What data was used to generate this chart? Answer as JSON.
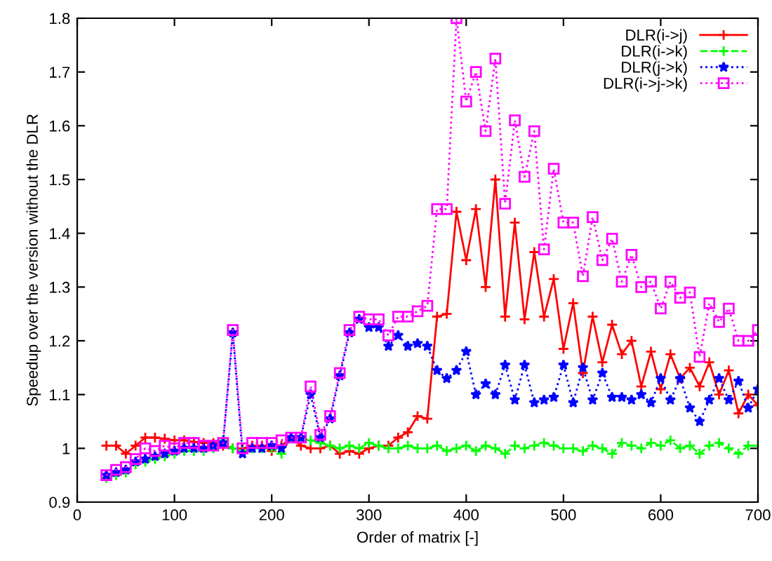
{
  "chart_data": {
    "type": "line",
    "xlabel": "Order of matrix [-]",
    "ylabel": "Speedup over the version without the DLR",
    "x": [
      30,
      40,
      50,
      60,
      70,
      80,
      90,
      100,
      110,
      120,
      130,
      140,
      150,
      160,
      170,
      180,
      190,
      200,
      210,
      220,
      230,
      240,
      250,
      260,
      270,
      280,
      290,
      300,
      310,
      320,
      330,
      340,
      350,
      360,
      370,
      380,
      390,
      400,
      410,
      420,
      430,
      440,
      450,
      460,
      470,
      480,
      490,
      500,
      510,
      520,
      530,
      540,
      550,
      560,
      570,
      580,
      590,
      600,
      610,
      620,
      630,
      640,
      650,
      660,
      670,
      680,
      690,
      700
    ],
    "series": [
      {
        "name": "DLR(i->j)",
        "color": "#ff0000",
        "line_style": "solid",
        "marker": "cross",
        "values": [
          1.005,
          1.005,
          0.99,
          1.005,
          1.02,
          1.02,
          1.018,
          1.015,
          1.015,
          1.012,
          1.01,
          1.01,
          1.005,
          1.0,
          1.0,
          1.005,
          1.005,
          0.995,
          1.005,
          1.02,
          1.005,
          1.0,
          1.0,
          1.005,
          0.99,
          0.995,
          0.99,
          1.0,
          1.005,
          1.005,
          1.02,
          1.03,
          1.06,
          1.055,
          1.245,
          1.25,
          1.44,
          1.35,
          1.445,
          1.3,
          1.5,
          1.245,
          1.42,
          1.24,
          1.365,
          1.245,
          1.315,
          1.185,
          1.27,
          1.14,
          1.245,
          1.16,
          1.23,
          1.175,
          1.2,
          1.115,
          1.18,
          1.11,
          1.175,
          1.13,
          1.15,
          1.115,
          1.16,
          1.1,
          1.145,
          1.065,
          1.1,
          1.08
        ]
      },
      {
        "name": "DLR(i->k)",
        "color": "#00ff00",
        "line_style": "dashed",
        "marker": "cross",
        "values": [
          0.945,
          0.95,
          0.955,
          0.97,
          0.975,
          0.98,
          0.985,
          0.99,
          0.995,
          0.995,
          0.995,
          1.0,
          1.015,
          1.0,
          0.995,
          1.0,
          1.0,
          1.0,
          0.99,
          1.02,
          1.02,
          1.015,
          1.01,
          1.005,
          1.0,
          1.005,
          1.0,
          1.01,
          1.005,
          1.0,
          1.0,
          1.005,
          1.0,
          1.0,
          1.005,
          0.995,
          1.0,
          1.005,
          0.995,
          1.005,
          1.0,
          0.99,
          1.005,
          1.0,
          1.005,
          1.01,
          1.005,
          1.0,
          1.0,
          0.995,
          1.005,
          1.0,
          0.99,
          1.01,
          1.005,
          1.0,
          1.01,
          1.005,
          1.015,
          1.0,
          1.005,
          0.99,
          1.005,
          1.01,
          1.0,
          0.99,
          1.005,
          1.005
        ]
      },
      {
        "name": "DLR(j->k)",
        "color": "#0000ff",
        "line_style": "dotted",
        "marker": "star",
        "values": [
          0.95,
          0.955,
          0.96,
          0.975,
          0.98,
          0.985,
          0.99,
          0.995,
          1.0,
          1.0,
          1.0,
          1.005,
          1.01,
          1.215,
          0.99,
          1.0,
          1.0,
          1.005,
          1.0,
          1.02,
          1.02,
          1.1,
          1.02,
          1.055,
          1.135,
          1.215,
          1.24,
          1.225,
          1.225,
          1.19,
          1.21,
          1.19,
          1.195,
          1.19,
          1.145,
          1.13,
          1.145,
          1.18,
          1.1,
          1.12,
          1.1,
          1.155,
          1.09,
          1.155,
          1.085,
          1.09,
          1.095,
          1.155,
          1.085,
          1.15,
          1.09,
          1.14,
          1.095,
          1.095,
          1.09,
          1.1,
          1.085,
          1.13,
          1.09,
          1.13,
          1.075,
          1.05,
          1.09,
          1.13,
          1.09,
          1.125,
          1.075,
          1.11
        ]
      },
      {
        "name": "DLR(i->j->k)",
        "color": "#ff00ff",
        "line_style": "dotted",
        "marker": "square",
        "values": [
          0.95,
          0.96,
          0.965,
          0.98,
          1.0,
          0.995,
          1.005,
          1.0,
          1.01,
          1.01,
          1.005,
          1.005,
          1.01,
          1.22,
          1.0,
          1.01,
          1.01,
          1.01,
          1.015,
          1.02,
          1.02,
          1.115,
          1.025,
          1.06,
          1.14,
          1.22,
          1.245,
          1.24,
          1.24,
          1.21,
          1.245,
          1.245,
          1.255,
          1.265,
          1.445,
          1.445,
          1.8,
          1.645,
          1.7,
          1.59,
          1.725,
          1.455,
          1.61,
          1.505,
          1.59,
          1.37,
          1.52,
          1.42,
          1.42,
          1.32,
          1.43,
          1.35,
          1.39,
          1.31,
          1.36,
          1.3,
          1.31,
          1.26,
          1.31,
          1.28,
          1.29,
          1.17,
          1.27,
          1.235,
          1.26,
          1.2,
          1.2,
          1.22
        ]
      }
    ],
    "xlim": [
      0,
      700
    ],
    "xticks": [
      0,
      100,
      200,
      300,
      400,
      500,
      600,
      700
    ],
    "ylim": [
      0.9,
      1.8
    ],
    "yticks": [
      0.9,
      1,
      1.1,
      1.2,
      1.3,
      1.4,
      1.5,
      1.6,
      1.7,
      1.8
    ],
    "grid": false,
    "legend": "top right"
  }
}
